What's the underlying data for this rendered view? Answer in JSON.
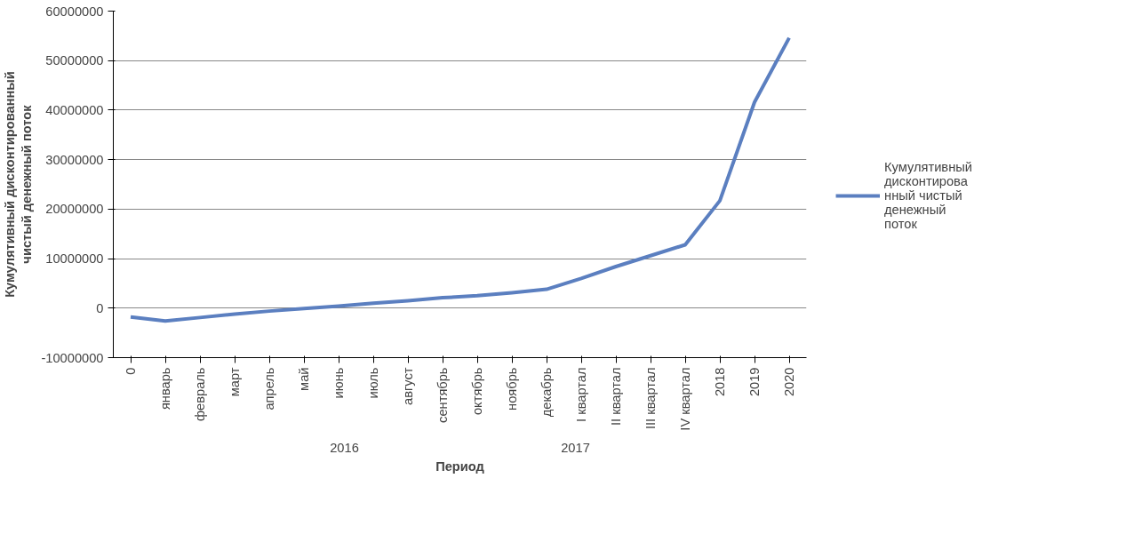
{
  "chart_data": {
    "type": "line",
    "xlabel": "Период",
    "ylabel": "Кумулятивный дисконтированный чистый денежный поток",
    "categories": [
      "0",
      "январь",
      "февраль",
      "март",
      "апрель",
      "май",
      "июнь",
      "июль",
      "август",
      "сентябрь",
      "октябрь",
      "ноябрь",
      "декабрь",
      "I квартал",
      "II квартал",
      "III квартал",
      "IV квартал",
      "2018",
      "2019",
      "2020"
    ],
    "series": [
      {
        "name": "Кумулятивный дисконтированный чистый денежный поток",
        "color": "#5b7fc0",
        "values": [
          -1800000,
          -2600000,
          -1900000,
          -1200000,
          -600000,
          -100000,
          400000,
          1000000,
          1500000,
          2100000,
          2500000,
          3100000,
          3800000,
          6000000,
          8400000,
          10600000,
          12800000,
          21700000,
          41600000,
          54600000
        ]
      }
    ],
    "ylim": [
      -10000000,
      60000000
    ],
    "yticks": [
      -10000000,
      0,
      10000000,
      20000000,
      30000000,
      40000000,
      50000000,
      60000000
    ],
    "annotations": [
      "2016",
      "2017"
    ],
    "grid": "y",
    "legend": "right",
    "marker": "none",
    "line_style": "solid"
  }
}
